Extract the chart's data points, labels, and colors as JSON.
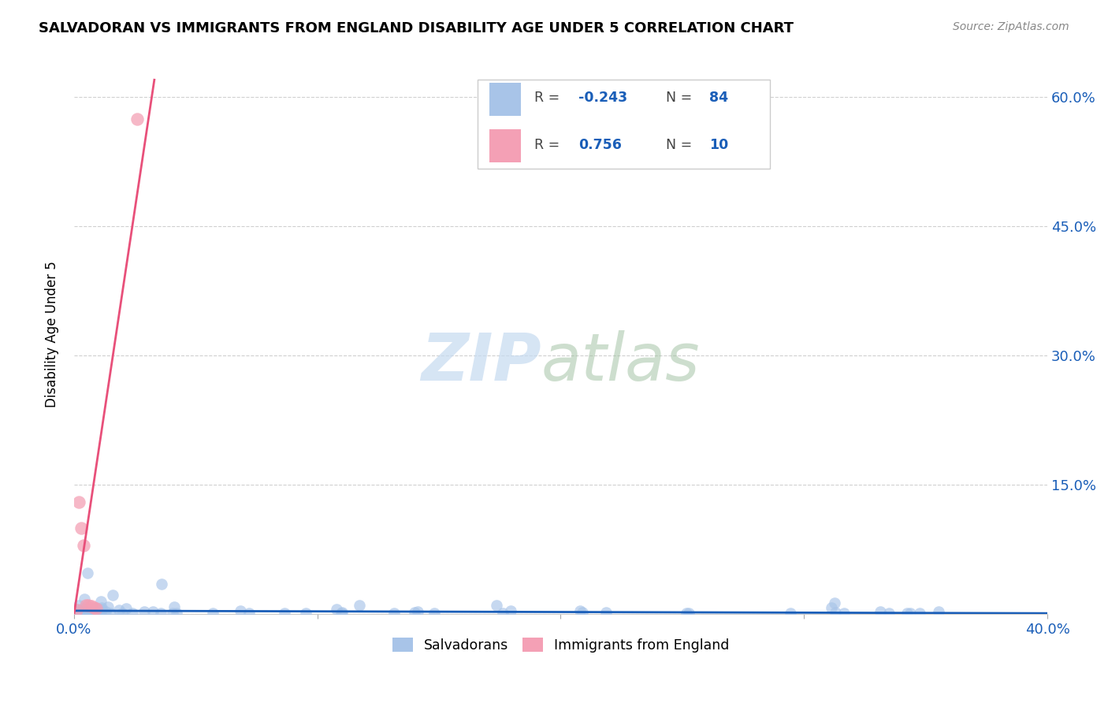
{
  "title": "SALVADORAN VS IMMIGRANTS FROM ENGLAND DISABILITY AGE UNDER 5 CORRELATION CHART",
  "source": "Source: ZipAtlas.com",
  "ylabel": "Disability Age Under 5",
  "xlim": [
    0.0,
    0.4
  ],
  "ylim": [
    0.0,
    0.65
  ],
  "ytick_positions": [
    0.0,
    0.15,
    0.3,
    0.45,
    0.6
  ],
  "ytick_labels_right": [
    "",
    "15.0%",
    "30.0%",
    "45.0%",
    "60.0%"
  ],
  "xtick_positions": [
    0.0,
    0.1,
    0.2,
    0.3,
    0.4
  ],
  "xtick_labels": [
    "0.0%",
    "",
    "",
    "",
    "40.0%"
  ],
  "blue_color": "#a8c4e8",
  "pink_color": "#f4a0b5",
  "blue_line_color": "#1a5eb8",
  "pink_line_color": "#e8507a",
  "blue_R": -0.243,
  "blue_N": 84,
  "pink_R": 0.756,
  "pink_N": 10,
  "legend_label_blue": "Salvadorans",
  "legend_label_pink": "Immigrants from England",
  "pink_line_x": [
    0.0,
    0.033
  ],
  "pink_line_y": [
    0.0,
    0.62
  ],
  "blue_line_x": [
    0.0,
    0.4
  ],
  "blue_line_y": [
    0.004,
    0.001
  ],
  "pink_scatter_x": [
    0.002,
    0.003,
    0.004,
    0.005,
    0.006,
    0.007,
    0.008,
    0.009,
    0.001,
    0.026
  ],
  "pink_scatter_y": [
    0.13,
    0.1,
    0.08,
    0.01,
    0.01,
    0.009,
    0.008,
    0.007,
    0.005,
    0.575
  ],
  "watermark_zip_color": "#c5daf0",
  "watermark_atlas_color": "#9dbf9e"
}
